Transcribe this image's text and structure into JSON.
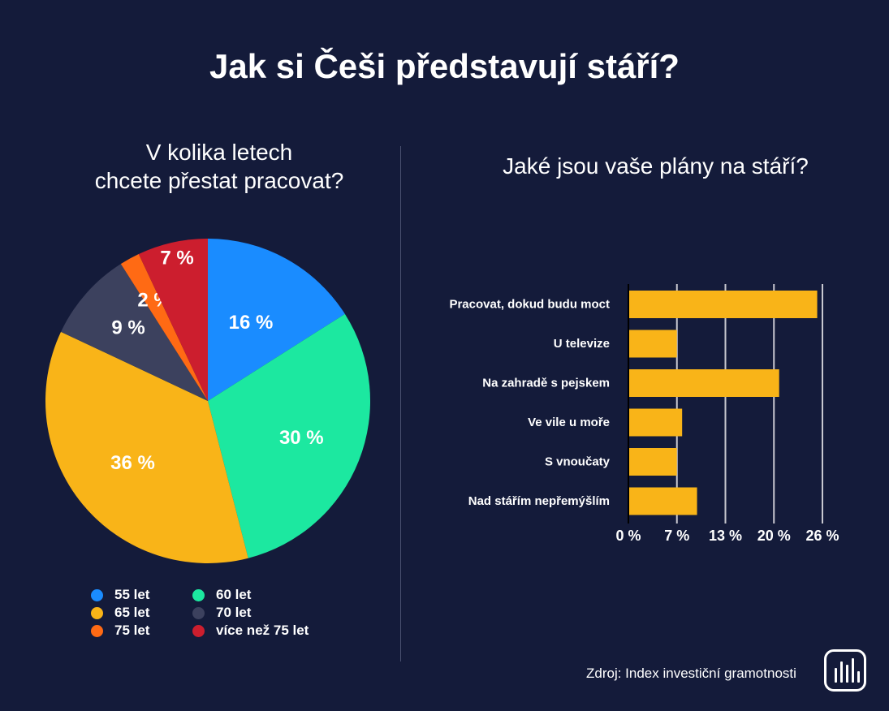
{
  "title": "Jak si Češi představují stáří?",
  "source": "Zdroj: Index investiční gramotnosti",
  "chart_data": [
    {
      "type": "pie",
      "title": "V kolika letech chcete přestat pracovat?",
      "title_lines": [
        "V kolika letech",
        "chcete přestat pracovat?"
      ],
      "legend_position": "bottom",
      "slices": [
        {
          "label": "55 let",
          "value": 16,
          "display": "16 %",
          "color": "#1a8cff"
        },
        {
          "label": "60 let",
          "value": 30,
          "display": "30 %",
          "color": "#1ce8a0"
        },
        {
          "label": "65 let",
          "value": 36,
          "display": "36 %",
          "color": "#f9b418"
        },
        {
          "label": "70 let",
          "value": 9,
          "display": "9 %",
          "color": "#3c415e"
        },
        {
          "label": "75 let",
          "value": 2,
          "display": "2 %",
          "color": "#ff6a14"
        },
        {
          "label": "více než 75 let",
          "value": 7,
          "display": "7 %",
          "color": "#cc1e2e"
        }
      ],
      "legend_order": [
        0,
        1,
        2,
        3,
        4,
        5
      ]
    },
    {
      "type": "bar",
      "orientation": "horizontal",
      "title": "Jaké jsou vaše plány na stáří?",
      "categories": [
        "Pracovat, dokud budu moct",
        "U televize",
        "Na zahradě s pejskem",
        "Ve vile u moře",
        "S vnoučaty",
        "Nad stářím nepřemýšlím"
      ],
      "values": [
        25.3,
        6.5,
        20.2,
        7.2,
        6.5,
        9.2
      ],
      "color": "#f9b418",
      "xlim": [
        0,
        26
      ],
      "xticks": [
        0,
        6.5,
        13,
        19.5,
        26
      ],
      "xtick_labels": [
        "0 %",
        "7 %",
        "13 %",
        "20 %",
        "26 %"
      ],
      "grid": true
    }
  ]
}
